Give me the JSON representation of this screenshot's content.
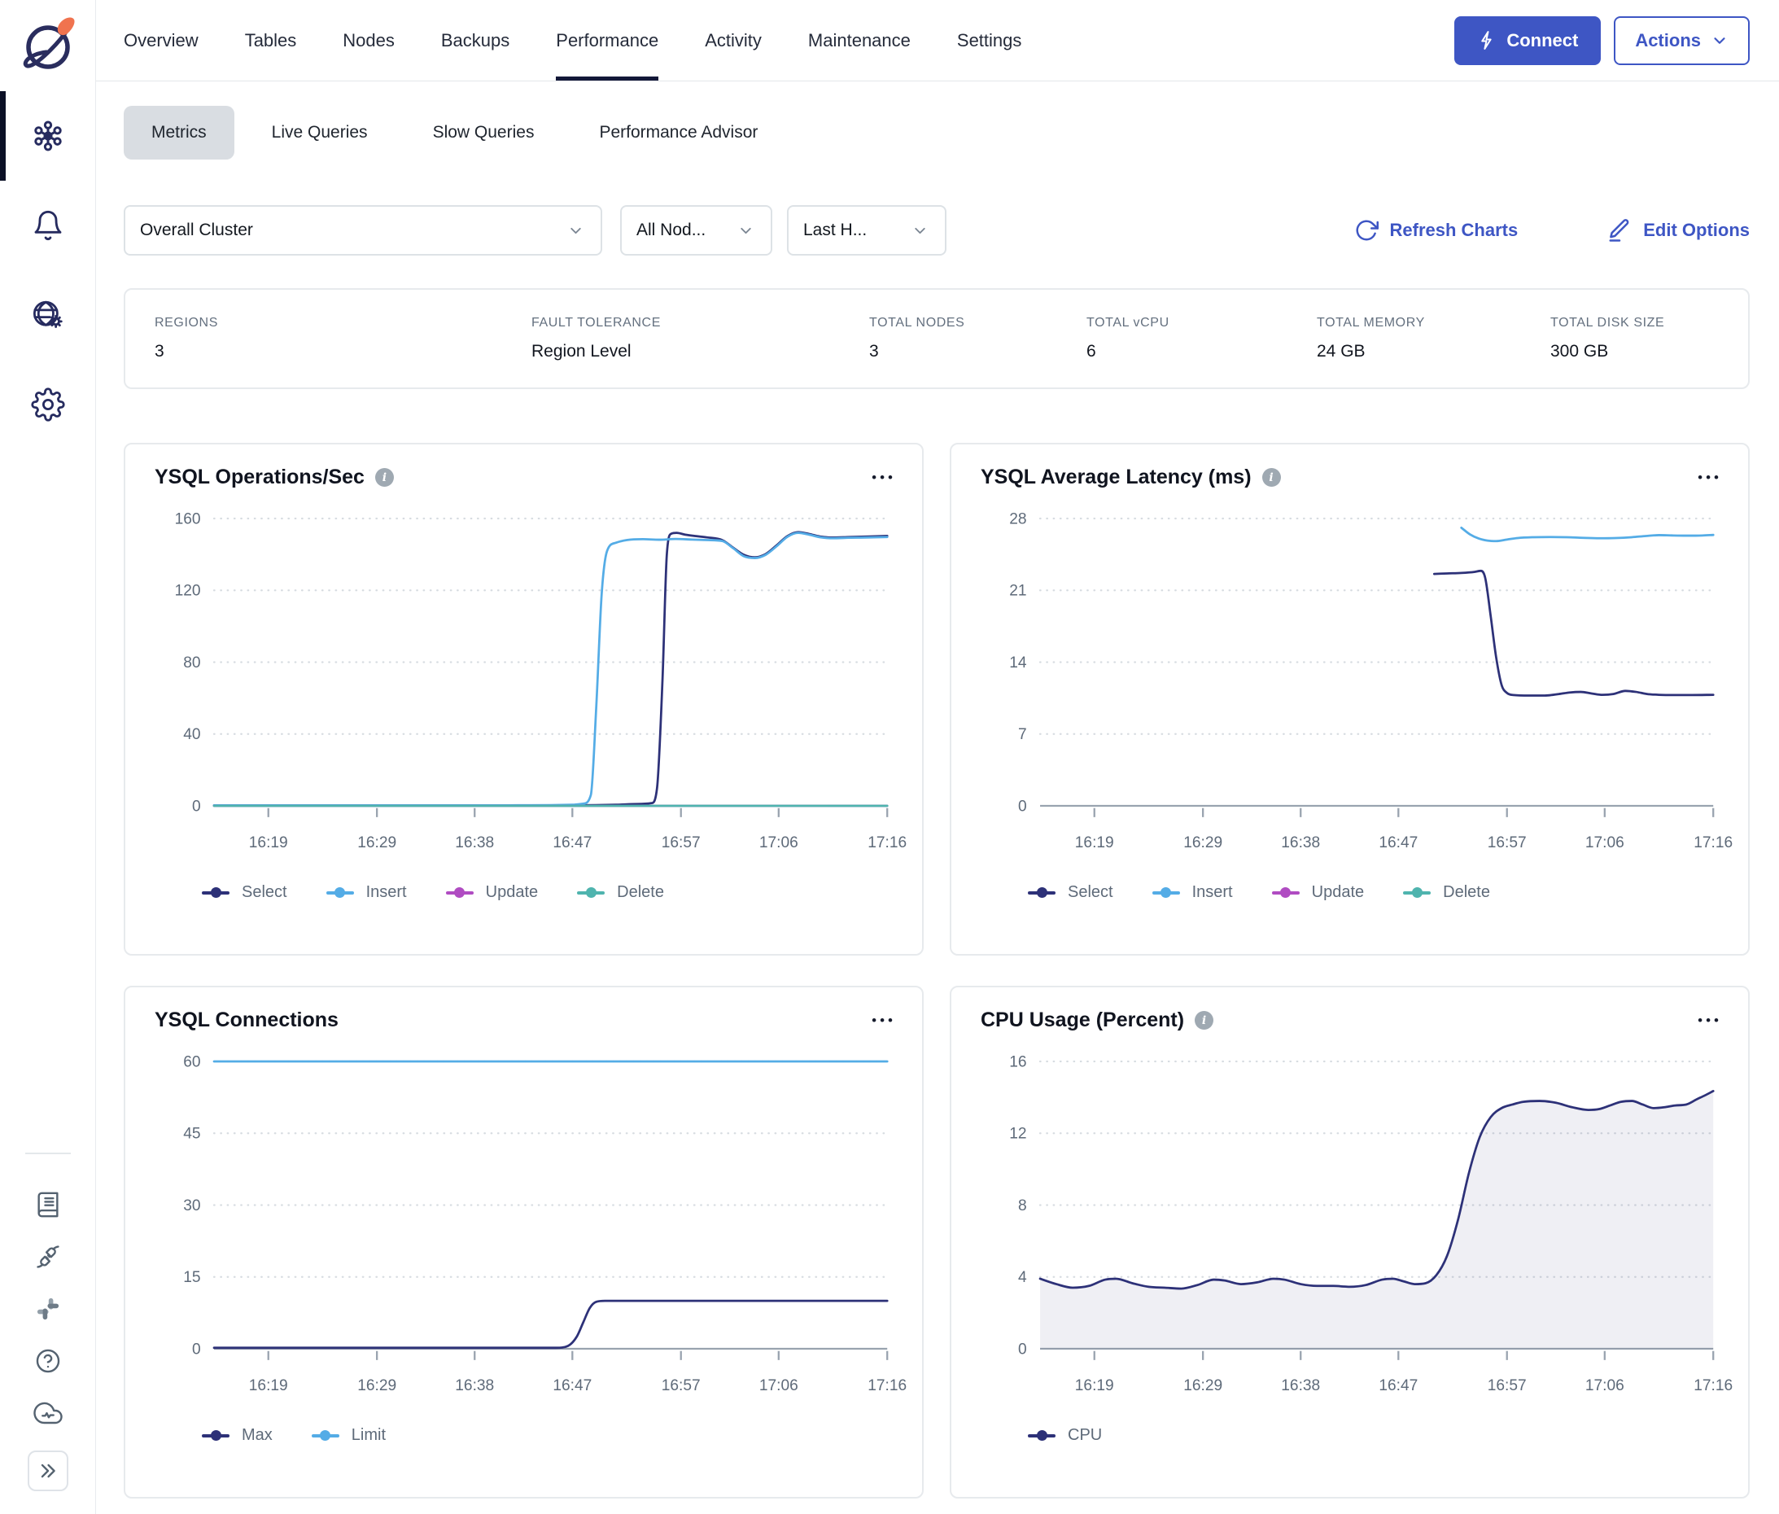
{
  "ui": {
    "ellipsis": "•••",
    "info_glyph": "i"
  },
  "sidebar": {
    "top_items": [
      "clusters",
      "alerts",
      "regions",
      "settings"
    ],
    "bottom_items": [
      "documentation",
      "integrations",
      "slack",
      "help",
      "cloud-status",
      "expand"
    ]
  },
  "topnav": {
    "tabs": [
      "Overview",
      "Tables",
      "Nodes",
      "Backups",
      "Performance",
      "Activity",
      "Maintenance",
      "Settings"
    ],
    "active_tab": "Performance",
    "connect_label": "Connect",
    "actions_label": "Actions"
  },
  "subtabs": {
    "items": [
      "Metrics",
      "Live Queries",
      "Slow Queries",
      "Performance Advisor"
    ],
    "active": "Metrics"
  },
  "filters": {
    "cluster_select": "Overall Cluster",
    "node_select": "All Nod...",
    "time_select": "Last H...",
    "refresh_label": "Refresh Charts",
    "edit_label": "Edit Options"
  },
  "stats": [
    {
      "label": "REGIONS",
      "value": "3"
    },
    {
      "label": "FAULT TOLERANCE",
      "value": "Region Level"
    },
    {
      "label": "TOTAL NODES",
      "value": "3"
    },
    {
      "label": "TOTAL vCPU",
      "value": "6"
    },
    {
      "label": "TOTAL MEMORY",
      "value": "24 GB"
    },
    {
      "label": "TOTAL DISK SIZE",
      "value": "300 GB"
    }
  ],
  "colors": {
    "accent_blue": "#3e56c4",
    "series_navy": "#2d3178",
    "series_blue": "#54ace6",
    "series_purple": "#b04cc2",
    "series_teal": "#4fb4ae",
    "grid": "#d7dce1",
    "axis": "#99a3af",
    "cpu_fill": "rgba(45,49,120,0.08)"
  },
  "chart_data": [
    {
      "type": "line",
      "title": "YSQL Operations/Sec",
      "has_info": true,
      "xmin": 0,
      "xmax": 62,
      "xticks": [
        {
          "m": 5,
          "label": "16:19"
        },
        {
          "m": 15,
          "label": "16:29"
        },
        {
          "m": 24,
          "label": "16:38"
        },
        {
          "m": 33,
          "label": "16:47"
        },
        {
          "m": 43,
          "label": "16:57"
        },
        {
          "m": 52,
          "label": "17:06"
        },
        {
          "m": 62,
          "label": "17:16"
        }
      ],
      "ylim": [
        0,
        160
      ],
      "yticks": [
        0,
        40,
        80,
        120,
        160
      ],
      "series": [
        {
          "name": "Select",
          "color": "#2d3178",
          "values": [
            [
              0,
              0.2
            ],
            [
              20,
              0.2
            ],
            [
              33,
              0.3
            ],
            [
              37,
              0.6
            ],
            [
              39,
              1.0
            ],
            [
              40.3,
              1.5
            ],
            [
              40.8,
              10
            ],
            [
              41.3,
              70
            ],
            [
              41.7,
              140
            ],
            [
              42.1,
              151.5
            ],
            [
              42.6,
              152
            ],
            [
              43.4,
              151
            ],
            [
              44.4,
              150.2
            ],
            [
              45.4,
              149.5
            ],
            [
              46.8,
              148
            ],
            [
              47.8,
              143.8
            ],
            [
              48.8,
              139.8
            ],
            [
              49.8,
              138.4
            ],
            [
              50.8,
              140.2
            ],
            [
              51.8,
              145
            ],
            [
              52.8,
              150.2
            ],
            [
              53.8,
              152.4
            ],
            [
              54.8,
              151.4
            ],
            [
              55.8,
              150
            ],
            [
              57,
              149.4
            ],
            [
              58.5,
              149.7
            ],
            [
              60,
              149.9
            ],
            [
              62,
              150.3
            ]
          ]
        },
        {
          "name": "Insert",
          "color": "#54ace6",
          "values": [
            [
              0,
              0.3
            ],
            [
              20,
              0.3
            ],
            [
              27,
              0.3
            ],
            [
              31,
              0.4
            ],
            [
              33,
              0.6
            ],
            [
              34,
              1.2
            ],
            [
              34.7,
              6
            ],
            [
              35.2,
              55
            ],
            [
              35.7,
              118
            ],
            [
              36.2,
              142
            ],
            [
              37,
              146.5
            ],
            [
              38,
              148
            ],
            [
              39.5,
              148.5
            ],
            [
              41,
              148.2
            ],
            [
              42.5,
              148.6
            ],
            [
              44,
              148.3
            ],
            [
              45.5,
              148
            ],
            [
              46.8,
              147.5
            ],
            [
              47.8,
              143.5
            ],
            [
              48.8,
              139
            ],
            [
              49.8,
              138
            ],
            [
              50.8,
              139.8
            ],
            [
              51.8,
              144.5
            ],
            [
              52.8,
              149.8
            ],
            [
              53.8,
              152
            ],
            [
              54.8,
              151
            ],
            [
              55.8,
              149.6
            ],
            [
              57,
              149
            ],
            [
              58.5,
              149.3
            ],
            [
              60,
              149.4
            ],
            [
              62,
              149.7
            ]
          ]
        },
        {
          "name": "Update",
          "color": "#b04cc2",
          "values": [
            [
              0,
              0
            ],
            [
              62,
              0
            ]
          ]
        },
        {
          "name": "Delete",
          "color": "#4fb4ae",
          "values": [
            [
              0,
              0
            ],
            [
              62,
              0
            ]
          ]
        }
      ]
    },
    {
      "type": "line",
      "title": "YSQL Average Latency (ms)",
      "has_info": true,
      "xmin": 0,
      "xmax": 62,
      "xticks": [
        {
          "m": 5,
          "label": "16:19"
        },
        {
          "m": 15,
          "label": "16:29"
        },
        {
          "m": 24,
          "label": "16:38"
        },
        {
          "m": 33,
          "label": "16:47"
        },
        {
          "m": 43,
          "label": "16:57"
        },
        {
          "m": 52,
          "label": "17:06"
        },
        {
          "m": 62,
          "label": "17:16"
        }
      ],
      "ylim": [
        0,
        28
      ],
      "yticks": [
        0,
        7,
        14,
        21,
        28
      ],
      "series": [
        {
          "name": "Select",
          "color": "#2d3178",
          "values": [
            [
              36.3,
              22.6
            ],
            [
              37.5,
              22.65
            ],
            [
              38.8,
              22.7
            ],
            [
              40,
              22.8
            ],
            [
              40.6,
              22.9
            ],
            [
              41,
              22.2
            ],
            [
              41.5,
              18.5
            ],
            [
              42,
              14.5
            ],
            [
              42.5,
              11.8
            ],
            [
              43,
              11
            ],
            [
              43.6,
              10.8
            ],
            [
              45,
              10.75
            ],
            [
              46.5,
              10.75
            ],
            [
              47.8,
              10.9
            ],
            [
              48.8,
              11.05
            ],
            [
              49.8,
              11.1
            ],
            [
              50.8,
              10.95
            ],
            [
              51.8,
              10.82
            ],
            [
              52.8,
              10.9
            ],
            [
              53.9,
              11.2
            ],
            [
              54.9,
              11.1
            ],
            [
              55.9,
              10.9
            ],
            [
              57,
              10.82
            ],
            [
              58.5,
              10.8
            ],
            [
              60,
              10.8
            ],
            [
              62,
              10.82
            ]
          ]
        },
        {
          "name": "Insert",
          "color": "#54ace6",
          "values": [
            [
              38.8,
              27.1
            ],
            [
              39.6,
              26.45
            ],
            [
              40.4,
              26.05
            ],
            [
              41.2,
              25.85
            ],
            [
              42,
              25.8
            ],
            [
              43,
              25.95
            ],
            [
              44,
              26.1
            ],
            [
              45.5,
              26.18
            ],
            [
              47,
              26.2
            ],
            [
              48.5,
              26.18
            ],
            [
              50,
              26.12
            ],
            [
              51.5,
              26.08
            ],
            [
              53,
              26.1
            ],
            [
              54.5,
              26.18
            ],
            [
              55.8,
              26.3
            ],
            [
              57,
              26.38
            ],
            [
              58.2,
              26.35
            ],
            [
              59.6,
              26.33
            ],
            [
              61,
              26.35
            ],
            [
              62,
              26.4
            ]
          ]
        },
        {
          "name": "Update",
          "color": "#b04cc2",
          "values": []
        },
        {
          "name": "Delete",
          "color": "#4fb4ae",
          "values": []
        }
      ]
    },
    {
      "type": "line",
      "title": "YSQL Connections",
      "has_info": false,
      "xmin": 0,
      "xmax": 62,
      "xticks": [
        {
          "m": 5,
          "label": "16:19"
        },
        {
          "m": 15,
          "label": "16:29"
        },
        {
          "m": 24,
          "label": "16:38"
        },
        {
          "m": 33,
          "label": "16:47"
        },
        {
          "m": 43,
          "label": "16:57"
        },
        {
          "m": 52,
          "label": "17:06"
        },
        {
          "m": 62,
          "label": "17:16"
        }
      ],
      "ylim": [
        0,
        60
      ],
      "yticks": [
        0,
        15,
        30,
        45,
        60
      ],
      "series": [
        {
          "name": "Max",
          "color": "#2d3178",
          "values": [
            [
              0,
              0.2
            ],
            [
              20,
              0.2
            ],
            [
              31.5,
              0.2
            ],
            [
              32.6,
              0.6
            ],
            [
              33.4,
              2.5
            ],
            [
              34,
              5.5
            ],
            [
              34.6,
              8.5
            ],
            [
              35.2,
              9.8
            ],
            [
              36,
              10
            ],
            [
              45,
              10
            ],
            [
              55,
              10
            ],
            [
              62,
              10
            ]
          ]
        },
        {
          "name": "Limit",
          "color": "#54ace6",
          "values": [
            [
              0,
              60
            ],
            [
              62,
              60
            ]
          ]
        }
      ]
    },
    {
      "type": "area",
      "title": "CPU Usage (Percent)",
      "has_info": true,
      "xmin": 0,
      "xmax": 62,
      "xticks": [
        {
          "m": 5,
          "label": "16:19"
        },
        {
          "m": 15,
          "label": "16:29"
        },
        {
          "m": 24,
          "label": "16:38"
        },
        {
          "m": 33,
          "label": "16:47"
        },
        {
          "m": 43,
          "label": "16:57"
        },
        {
          "m": 52,
          "label": "17:06"
        },
        {
          "m": 62,
          "label": "17:16"
        }
      ],
      "ylim": [
        0,
        16
      ],
      "yticks": [
        0,
        4,
        8,
        12,
        16
      ],
      "series": [
        {
          "name": "CPU",
          "color": "#2d3178",
          "fill": "rgba(45,49,120,0.08)",
          "values": [
            [
              0,
              3.9
            ],
            [
              1.5,
              3.6
            ],
            [
              3,
              3.4
            ],
            [
              4.5,
              3.5
            ],
            [
              6,
              3.85
            ],
            [
              7,
              3.9
            ],
            [
              8.5,
              3.65
            ],
            [
              10,
              3.45
            ],
            [
              11.5,
              3.4
            ],
            [
              13,
              3.35
            ],
            [
              14.5,
              3.55
            ],
            [
              16,
              3.85
            ],
            [
              17,
              3.8
            ],
            [
              18.5,
              3.6
            ],
            [
              20,
              3.7
            ],
            [
              21.5,
              3.9
            ],
            [
              22.5,
              3.85
            ],
            [
              24,
              3.6
            ],
            [
              25.5,
              3.5
            ],
            [
              27,
              3.5
            ],
            [
              28.5,
              3.45
            ],
            [
              30,
              3.55
            ],
            [
              31.5,
              3.85
            ],
            [
              32.5,
              3.9
            ],
            [
              33.5,
              3.75
            ],
            [
              34.5,
              3.6
            ],
            [
              35.5,
              3.65
            ],
            [
              36.5,
              4.1
            ],
            [
              37.5,
              5.2
            ],
            [
              38.5,
              7.2
            ],
            [
              39.5,
              9.8
            ],
            [
              40.5,
              11.8
            ],
            [
              41.5,
              12.9
            ],
            [
              42.5,
              13.4
            ],
            [
              43.5,
              13.6
            ],
            [
              44.5,
              13.75
            ],
            [
              46,
              13.8
            ],
            [
              47.5,
              13.7
            ],
            [
              49,
              13.45
            ],
            [
              50.5,
              13.3
            ],
            [
              51.5,
              13.35
            ],
            [
              52.5,
              13.55
            ],
            [
              53.5,
              13.75
            ],
            [
              54.5,
              13.8
            ],
            [
              55.5,
              13.6
            ],
            [
              56.5,
              13.4
            ],
            [
              57.5,
              13.45
            ],
            [
              58.5,
              13.55
            ],
            [
              59.5,
              13.6
            ],
            [
              60.5,
              13.9
            ],
            [
              61.2,
              14.1
            ],
            [
              62,
              14.35
            ]
          ]
        }
      ]
    }
  ]
}
